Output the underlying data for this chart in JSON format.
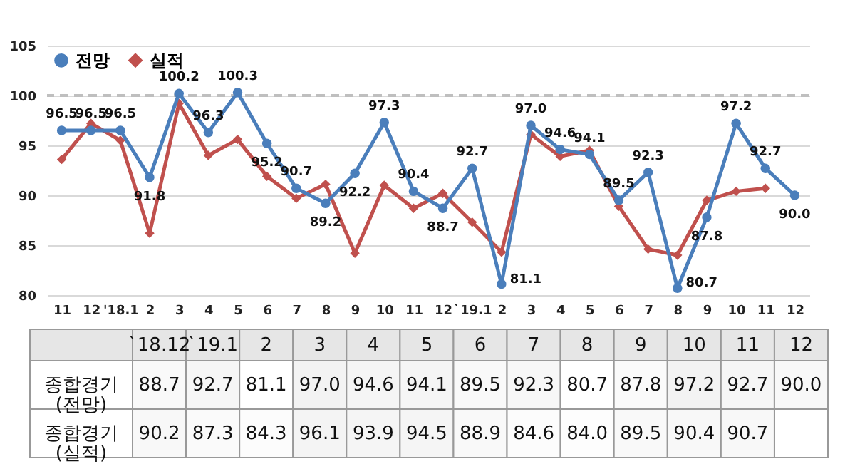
{
  "chart_data": [
    {
      "type": "line",
      "categories": [
        "11",
        "12",
        "'18.1",
        "2",
        "3",
        "4",
        "5",
        "6",
        "7",
        "8",
        "9",
        "10",
        "11",
        "12",
        "`19.1",
        "2",
        "3",
        "4",
        "5",
        "6",
        "7",
        "8",
        "9",
        "10",
        "11",
        "12"
      ],
      "series": [
        {
          "name": "전망",
          "color": "#4a7ebb",
          "marker": "circle",
          "values": [
            96.5,
            96.5,
            96.5,
            91.8,
            100.2,
            96.3,
            100.3,
            95.2,
            90.7,
            89.2,
            92.2,
            97.3,
            90.4,
            88.7,
            92.7,
            81.1,
            97.0,
            94.6,
            94.1,
            89.5,
            92.3,
            80.7,
            87.8,
            97.2,
            92.7,
            90.0
          ],
          "value_labels": [
            "96.5",
            "96.5",
            "96.5",
            "91.8",
            "100.2",
            "96.3",
            "100.3",
            "95.2",
            "90.7",
            "89.2",
            "92.2",
            "97.3",
            "90.4",
            "88.7",
            "92.7",
            "81.1",
            "97.0",
            "94.6",
            "94.1",
            "89.5",
            "92.3",
            "80.7",
            "87.8",
            "97.2",
            "92.7",
            "90.0"
          ]
        },
        {
          "name": "실적",
          "color": "#c0504d",
          "marker": "diamond",
          "values": [
            93.6,
            97.2,
            95.5,
            86.2,
            99.2,
            94.0,
            95.6,
            91.9,
            89.7,
            91.1,
            84.2,
            91.0,
            88.7,
            90.2,
            87.3,
            84.3,
            96.1,
            93.9,
            94.5,
            88.9,
            84.6,
            84.0,
            89.5,
            90.4,
            90.7,
            null
          ]
        }
      ],
      "ylim": [
        80,
        105
      ],
      "yticks": [
        80,
        85,
        90,
        95,
        100,
        105
      ],
      "grid": "y",
      "legend": "top left",
      "ref_lines": [
        {
          "axis": "y",
          "value": 100,
          "color": "#bfbfbf",
          "line_style": "dashed"
        }
      ]
    },
    {
      "type": "heatmap",
      "categories": [
        "`18.12",
        "`19.1",
        "2",
        "3",
        "4",
        "5",
        "6",
        "7",
        "8",
        "9",
        "10",
        "11",
        "12"
      ],
      "y_categories": [
        "종합경기\n(전망)",
        "종합경기\n(실적)"
      ],
      "cells": [
        [
          88.7,
          92.7,
          81.1,
          97.0,
          94.6,
          94.1,
          89.5,
          92.3,
          80.7,
          87.8,
          97.2,
          92.7,
          90.0
        ],
        [
          90.2,
          87.3,
          84.3,
          96.1,
          93.9,
          94.5,
          88.9,
          84.6,
          84.0,
          89.5,
          90.4,
          90.7,
          null
        ]
      ],
      "cell_labels": [
        [
          "88.7",
          "92.7",
          "81.1",
          "97.0",
          "94.6",
          "94.1",
          "89.5",
          "92.3",
          "80.7",
          "87.8",
          "97.2",
          "92.7",
          "90.0"
        ],
        [
          "90.2",
          "87.3",
          "84.3",
          "96.1",
          "93.9",
          "94.5",
          "88.9",
          "84.6",
          "84.0",
          "89.5",
          "90.4",
          "90.7",
          null
        ]
      ],
      "data_labels": true
    }
  ]
}
